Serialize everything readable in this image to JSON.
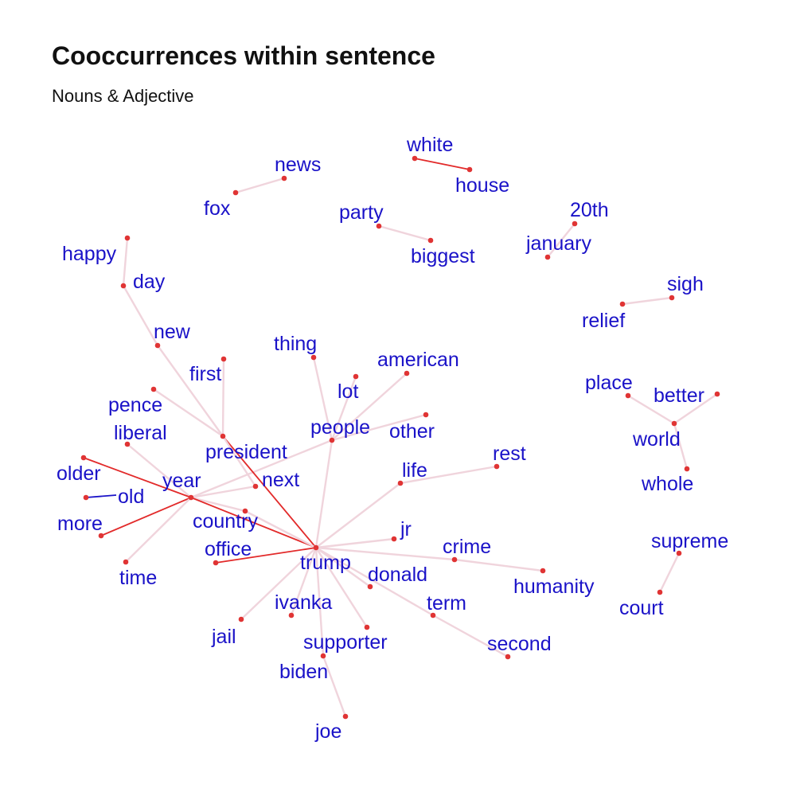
{
  "title": "Cooccurrences within sentence",
  "subtitle": "Nouns & Adjective",
  "colors": {
    "label": "#1a12c8",
    "node": "#e03434",
    "edge_weak": "#f0d4dc",
    "edge_strong": "#e22a2a",
    "edge_neg": "#1a12c8"
  },
  "nodes": [
    {
      "id": "white",
      "label": "white"
    },
    {
      "id": "house",
      "label": "house"
    },
    {
      "id": "news",
      "label": "news"
    },
    {
      "id": "fox",
      "label": "fox"
    },
    {
      "id": "party",
      "label": "party"
    },
    {
      "id": "biggest",
      "label": "biggest"
    },
    {
      "id": "20th",
      "label": "20th"
    },
    {
      "id": "january",
      "label": "january"
    },
    {
      "id": "happy",
      "label": "happy"
    },
    {
      "id": "day",
      "label": "day"
    },
    {
      "id": "sigh",
      "label": "sigh"
    },
    {
      "id": "relief",
      "label": "relief"
    },
    {
      "id": "new",
      "label": "new"
    },
    {
      "id": "thing",
      "label": "thing"
    },
    {
      "id": "american",
      "label": "american"
    },
    {
      "id": "first",
      "label": "first"
    },
    {
      "id": "lot",
      "label": "lot"
    },
    {
      "id": "place",
      "label": "place"
    },
    {
      "id": "better",
      "label": "better"
    },
    {
      "id": "pence",
      "label": "pence"
    },
    {
      "id": "people",
      "label": "people"
    },
    {
      "id": "other",
      "label": "other"
    },
    {
      "id": "liberal",
      "label": "liberal"
    },
    {
      "id": "world",
      "label": "world"
    },
    {
      "id": "president",
      "label": "president"
    },
    {
      "id": "rest",
      "label": "rest"
    },
    {
      "id": "older",
      "label": "older"
    },
    {
      "id": "life",
      "label": "life"
    },
    {
      "id": "whole",
      "label": "whole"
    },
    {
      "id": "year",
      "label": "year"
    },
    {
      "id": "next",
      "label": "next"
    },
    {
      "id": "old",
      "label": "old"
    },
    {
      "id": "country",
      "label": "country"
    },
    {
      "id": "more",
      "label": "more"
    },
    {
      "id": "jr",
      "label": "jr"
    },
    {
      "id": "supreme",
      "label": "supreme"
    },
    {
      "id": "crime",
      "label": "crime"
    },
    {
      "id": "office",
      "label": "office"
    },
    {
      "id": "trump",
      "label": "trump"
    },
    {
      "id": "time",
      "label": "time"
    },
    {
      "id": "donald",
      "label": "donald"
    },
    {
      "id": "humanity",
      "label": "humanity"
    },
    {
      "id": "court",
      "label": "court"
    },
    {
      "id": "ivanka",
      "label": "ivanka"
    },
    {
      "id": "term",
      "label": "term"
    },
    {
      "id": "jail",
      "label": "jail"
    },
    {
      "id": "supporter",
      "label": "supporter"
    },
    {
      "id": "second",
      "label": "second"
    },
    {
      "id": "biden",
      "label": "biden"
    },
    {
      "id": "joe",
      "label": "joe"
    }
  ],
  "edges": [
    {
      "source": "white",
      "target": "house",
      "strength": "strong"
    },
    {
      "source": "news",
      "target": "fox",
      "strength": "weak"
    },
    {
      "source": "party",
      "target": "biggest",
      "strength": "weak"
    },
    {
      "source": "20th",
      "target": "january",
      "strength": "weak"
    },
    {
      "source": "happy",
      "target": "day",
      "strength": "weak"
    },
    {
      "source": "day",
      "target": "new",
      "strength": "weak"
    },
    {
      "source": "new",
      "target": "president",
      "strength": "weak"
    },
    {
      "source": "sigh",
      "target": "relief",
      "strength": "weak"
    },
    {
      "source": "place",
      "target": "world",
      "strength": "weak"
    },
    {
      "source": "better",
      "target": "world",
      "strength": "weak"
    },
    {
      "source": "world",
      "target": "whole",
      "strength": "weak"
    },
    {
      "source": "supreme",
      "target": "court",
      "strength": "weak"
    },
    {
      "source": "thing",
      "target": "people",
      "strength": "weak"
    },
    {
      "source": "american",
      "target": "people",
      "strength": "weak"
    },
    {
      "source": "lot",
      "target": "people",
      "strength": "weak"
    },
    {
      "source": "other",
      "target": "people",
      "strength": "weak"
    },
    {
      "source": "people",
      "target": "year",
      "strength": "weak"
    },
    {
      "source": "people",
      "target": "trump",
      "strength": "weak"
    },
    {
      "source": "first",
      "target": "president",
      "strength": "weak"
    },
    {
      "source": "pence",
      "target": "president",
      "strength": "weak"
    },
    {
      "source": "president",
      "target": "trump",
      "strength": "strong"
    },
    {
      "source": "president",
      "target": "next",
      "strength": "weak"
    },
    {
      "source": "liberal",
      "target": "year",
      "strength": "weak"
    },
    {
      "source": "older",
      "target": "year",
      "strength": "strong"
    },
    {
      "source": "old",
      "target": "old_anchor",
      "strength": "neg"
    },
    {
      "source": "more",
      "target": "year",
      "strength": "strong"
    },
    {
      "source": "year",
      "target": "time",
      "strength": "weak"
    },
    {
      "source": "year",
      "target": "next",
      "strength": "weak"
    },
    {
      "source": "year",
      "target": "country",
      "strength": "weak"
    },
    {
      "source": "year",
      "target": "trump",
      "strength": "strong"
    },
    {
      "source": "office",
      "target": "trump",
      "strength": "strong"
    },
    {
      "source": "country",
      "target": "trump",
      "strength": "weak"
    },
    {
      "source": "life",
      "target": "rest",
      "strength": "weak"
    },
    {
      "source": "life",
      "target": "trump",
      "strength": "weak"
    },
    {
      "source": "jr",
      "target": "trump",
      "strength": "weak"
    },
    {
      "source": "crime",
      "target": "trump",
      "strength": "weak"
    },
    {
      "source": "crime",
      "target": "humanity",
      "strength": "weak"
    },
    {
      "source": "donald",
      "target": "trump",
      "strength": "weak"
    },
    {
      "source": "term",
      "target": "trump",
      "strength": "weak"
    },
    {
      "source": "term",
      "target": "second",
      "strength": "weak"
    },
    {
      "source": "ivanka",
      "target": "trump",
      "strength": "weak"
    },
    {
      "source": "jail",
      "target": "trump",
      "strength": "weak"
    },
    {
      "source": "supporter",
      "target": "trump",
      "strength": "weak"
    },
    {
      "source": "biden",
      "target": "trump",
      "strength": "weak"
    },
    {
      "source": "biden",
      "target": "joe",
      "strength": "weak"
    }
  ]
}
